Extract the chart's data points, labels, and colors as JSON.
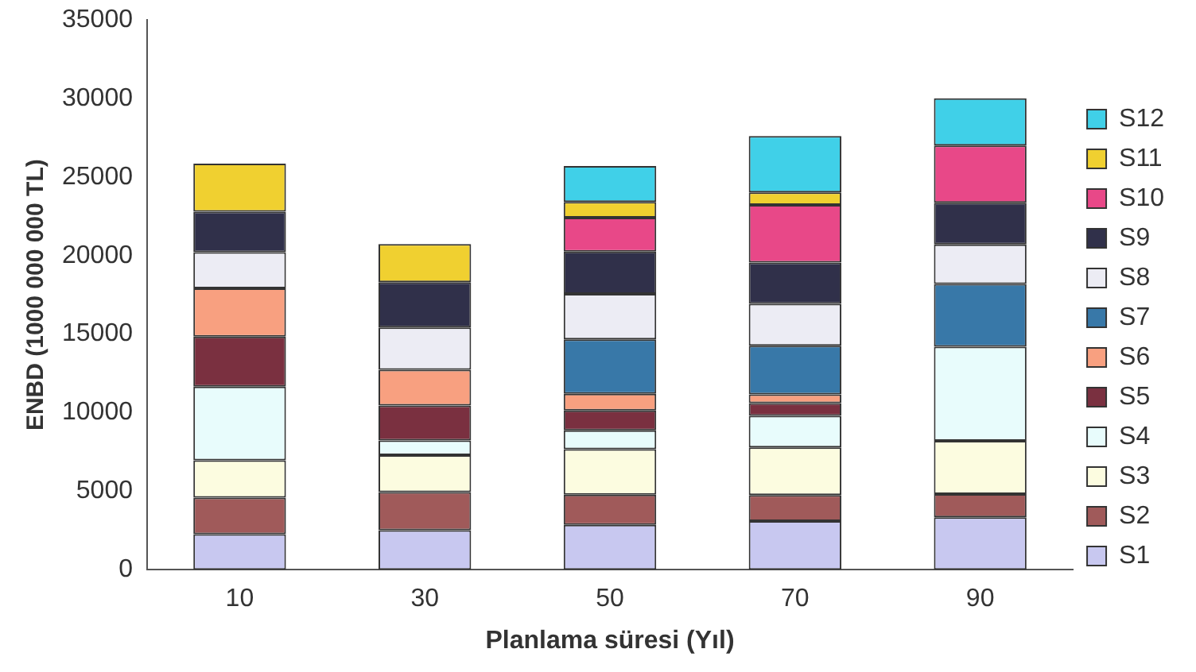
{
  "chart_data": {
    "type": "bar",
    "stacked": true,
    "xlabel": "Planlama süresi (Yıl)",
    "ylabel": "ENBD (1000 000 000 TL)",
    "categories": [
      "10",
      "30",
      "50",
      "70",
      "90"
    ],
    "ylim": [
      0,
      35000
    ],
    "yticks": [
      0,
      5000,
      10000,
      15000,
      20000,
      25000,
      30000,
      35000
    ],
    "grid": false,
    "legend": "right",
    "series": [
      {
        "name": "S1",
        "color": "#c8c8f0",
        "values": [
          2260,
          2520,
          2860,
          3100,
          3330
        ]
      },
      {
        "name": "S2",
        "color": "#a05a5a",
        "values": [
          2330,
          2420,
          1920,
          1650,
          1490
        ]
      },
      {
        "name": "S3",
        "color": "#fcfce0",
        "values": [
          2370,
          2350,
          2890,
          3040,
          3390
        ]
      },
      {
        "name": "S4",
        "color": "#e8fcfc",
        "values": [
          4700,
          940,
          1200,
          2010,
          5990
        ]
      },
      {
        "name": "S5",
        "color": "#7a3040",
        "values": [
          3180,
          2230,
          1270,
          810,
          null
        ]
      },
      {
        "name": "S6",
        "color": "#f8a080",
        "values": [
          3070,
          2270,
          1060,
          550,
          null
        ]
      },
      {
        "name": "S7",
        "color": "#3878a8",
        "values": [
          null,
          null,
          3470,
          3100,
          3990
        ]
      },
      {
        "name": "S8",
        "color": "#ececf4",
        "values": [
          2300,
          2700,
          2890,
          2670,
          2520
        ]
      },
      {
        "name": "S9",
        "color": "#30304a",
        "values": [
          2580,
          2880,
          2690,
          2630,
          2660
        ]
      },
      {
        "name": "S10",
        "color": "#e84888",
        "values": [
          null,
          null,
          2170,
          3660,
          3630
        ]
      },
      {
        "name": "S11",
        "color": "#f0d030",
        "values": [
          3070,
          2420,
          1000,
          800,
          null
        ]
      },
      {
        "name": "S12",
        "color": "#40d0e8",
        "values": [
          null,
          null,
          2290,
          3590,
          3020
        ]
      }
    ]
  }
}
